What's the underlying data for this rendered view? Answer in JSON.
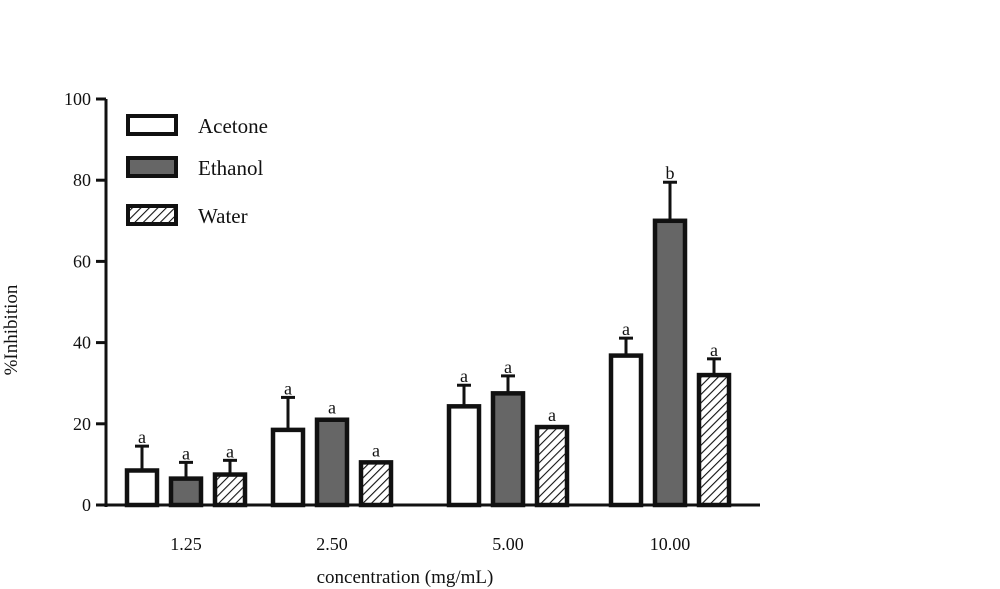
{
  "chart_data": {
    "type": "bar",
    "title": "",
    "xlabel": "concentration (mg/mL)",
    "ylabel": "%Inhibition",
    "ylim": [
      0,
      100
    ],
    "yticks": [
      0,
      20,
      40,
      60,
      80,
      100
    ],
    "categories": [
      "1.25",
      "2.50",
      "5.00",
      "10.00"
    ],
    "legend_position": "top-left",
    "series": [
      {
        "name": "Acetone",
        "fill": "#ffffff",
        "pattern": "solid",
        "values": [
          8.5,
          18.5,
          24.3,
          36.8
        ],
        "errors": [
          6.0,
          8.0,
          5.2,
          4.3
        ],
        "labels": [
          "a",
          "a",
          "a",
          "a"
        ]
      },
      {
        "name": "Ethanol",
        "fill": "#666666",
        "pattern": "solid",
        "values": [
          6.5,
          21.0,
          27.5,
          70.0
        ],
        "errors": [
          4.0,
          0,
          4.3,
          9.5
        ],
        "labels": [
          "a",
          "a",
          "a",
          "b"
        ]
      },
      {
        "name": "Water",
        "fill": "#ffffff",
        "pattern": "hatch",
        "values": [
          7.5,
          10.5,
          19.2,
          32.0
        ],
        "errors": [
          3.5,
          0,
          0,
          4.0
        ],
        "labels": [
          "a",
          "a",
          "a",
          "a"
        ]
      }
    ]
  }
}
